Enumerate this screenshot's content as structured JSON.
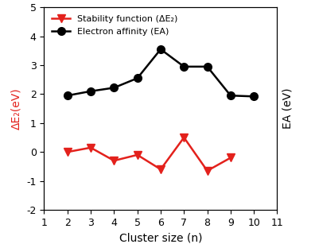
{
  "chart_data": {
    "type": "line",
    "x_label": "Cluster size (n)",
    "y_label": "ΔE₂(eV)",
    "y2_label": "EA (eV)",
    "xlim": [
      1,
      11
    ],
    "xticks": [
      1,
      2,
      3,
      4,
      5,
      6,
      7,
      8,
      9,
      10,
      11
    ],
    "ylim": [
      -2,
      5
    ],
    "yticks": [
      -2,
      -1,
      0,
      1,
      2,
      3,
      4,
      5
    ],
    "legend": "upper left",
    "grid": false,
    "series": [
      {
        "name": "Stability function (ΔE₂)",
        "color": "#e3211c",
        "marker": "v",
        "line_style": "solid",
        "x": [
          2,
          3,
          4,
          5,
          6,
          7,
          8,
          9
        ],
        "values": [
          0.0,
          0.15,
          -0.3,
          -0.1,
          -0.6,
          0.5,
          -0.65,
          -0.2
        ]
      },
      {
        "name": "Electron affinity (EA)",
        "color": "#000000",
        "marker": "o",
        "line_style": "solid",
        "x": [
          2,
          3,
          4,
          5,
          6,
          7,
          8,
          9,
          10
        ],
        "values": [
          1.95,
          2.1,
          2.22,
          2.55,
          3.55,
          2.95,
          2.95,
          1.95,
          1.92
        ]
      }
    ]
  }
}
